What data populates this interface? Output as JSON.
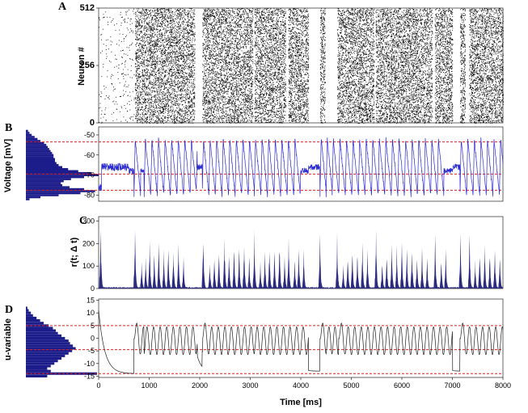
{
  "chart_data": [
    {
      "panel": "A",
      "type": "scatter",
      "ylabel": "Neuron #",
      "yticks": [
        0,
        256,
        512
      ],
      "ylim": [
        0,
        512
      ],
      "xlim": [
        0,
        8000
      ],
      "grid": false,
      "bursts": [
        {
          "start": 0,
          "end": 700,
          "density": "low"
        },
        {
          "start": 720,
          "end": 1200,
          "density": "high"
        },
        {
          "start": 1200,
          "end": 1900,
          "density": "high"
        },
        {
          "start": 2050,
          "end": 2400,
          "density": "high"
        },
        {
          "start": 2400,
          "end": 3050,
          "density": "high"
        },
        {
          "start": 3080,
          "end": 3700,
          "density": "high"
        },
        {
          "start": 3750,
          "end": 4150,
          "density": "high"
        },
        {
          "start": 4380,
          "end": 4480,
          "density": "high"
        },
        {
          "start": 4720,
          "end": 5450,
          "density": "high"
        },
        {
          "start": 5480,
          "end": 6600,
          "density": "high"
        },
        {
          "start": 6650,
          "end": 7000,
          "density": "high"
        },
        {
          "start": 7150,
          "end": 7250,
          "density": "high"
        },
        {
          "start": 7330,
          "end": 8000,
          "density": "high"
        }
      ]
    },
    {
      "panel": "B",
      "type": "line",
      "ylabel": "Voltage [mV]",
      "yticks": [
        -50,
        -60,
        -70,
        -80
      ],
      "ylim": [
        -83,
        -46
      ],
      "xlim": [
        0,
        8000
      ],
      "series_color": "#2a2ad0",
      "reference_lines": [
        -53.5,
        -69.5,
        -77.5
      ],
      "reference_color": "#e02020",
      "spike_times": [
        700,
        900,
        1030,
        1160,
        1290,
        1420,
        1550,
        1680,
        1810,
        1930,
        2050,
        2180,
        2310,
        2440,
        2570,
        2700,
        2830,
        2960,
        3080,
        3210,
        3340,
        3470,
        3600,
        3730,
        3860,
        4380,
        4500,
        4620,
        4750,
        4880,
        5010,
        5140,
        5270,
        5400,
        5530,
        5660,
        5790,
        5920,
        6050,
        6180,
        6310,
        6440,
        6570,
        6700,
        7150,
        7280,
        7410,
        7540,
        7670,
        7800,
        7930
      ],
      "histogram_fill": "#1c1c8a",
      "histogram_bins_mv": [
        -82,
        -81,
        -80,
        -79,
        -78,
        -77,
        -76,
        -75,
        -74,
        -73,
        -72,
        -71,
        -70,
        -69,
        -68,
        -67,
        -66,
        -65,
        -64,
        -63,
        -62,
        -61,
        -60,
        -59,
        -58,
        -57,
        -56,
        -55,
        -54,
        -53,
        -52,
        -51,
        -50,
        -49,
        -48
      ],
      "histogram_counts": [
        0.05,
        0.2,
        0.45,
        0.75,
        0.95,
        0.8,
        0.6,
        0.5,
        0.48,
        0.52,
        0.62,
        0.8,
        1.0,
        0.9,
        0.72,
        0.58,
        0.5,
        0.45,
        0.42,
        0.4,
        0.4,
        0.38,
        0.38,
        0.36,
        0.34,
        0.32,
        0.3,
        0.28,
        0.25,
        0.2,
        0.16,
        0.12,
        0.08,
        0.05,
        0.03
      ]
    },
    {
      "panel": "C",
      "type": "area",
      "ylabel": "r(t; Δ t)",
      "yticks": [
        0,
        100,
        200,
        300
      ],
      "ylim": [
        0,
        320
      ],
      "xlim": [
        0,
        8000
      ],
      "fill": "#2b2b80",
      "peaks": [
        {
          "t": 40,
          "v": 310
        },
        {
          "t": 720,
          "v": 300
        },
        {
          "t": 850,
          "v": 120
        },
        {
          "t": 930,
          "v": 160
        },
        {
          "t": 1010,
          "v": 230
        },
        {
          "t": 1100,
          "v": 180
        },
        {
          "t": 1190,
          "v": 240
        },
        {
          "t": 1290,
          "v": 200
        },
        {
          "t": 1380,
          "v": 210
        },
        {
          "t": 1480,
          "v": 190
        },
        {
          "t": 1580,
          "v": 210
        },
        {
          "t": 1680,
          "v": 150
        },
        {
          "t": 2070,
          "v": 260
        },
        {
          "t": 2200,
          "v": 130
        },
        {
          "t": 2290,
          "v": 170
        },
        {
          "t": 2380,
          "v": 200
        },
        {
          "t": 2490,
          "v": 250
        },
        {
          "t": 2580,
          "v": 190
        },
        {
          "t": 2680,
          "v": 220
        },
        {
          "t": 2780,
          "v": 210
        },
        {
          "t": 2880,
          "v": 240
        },
        {
          "t": 2980,
          "v": 160
        },
        {
          "t": 3080,
          "v": 270
        },
        {
          "t": 3200,
          "v": 130
        },
        {
          "t": 3290,
          "v": 180
        },
        {
          "t": 3380,
          "v": 220
        },
        {
          "t": 3480,
          "v": 200
        },
        {
          "t": 3580,
          "v": 230
        },
        {
          "t": 3680,
          "v": 170
        },
        {
          "t": 3760,
          "v": 250
        },
        {
          "t": 3880,
          "v": 160
        },
        {
          "t": 3960,
          "v": 200
        },
        {
          "t": 4060,
          "v": 180
        },
        {
          "t": 4380,
          "v": 260
        },
        {
          "t": 4720,
          "v": 260
        },
        {
          "t": 4840,
          "v": 120
        },
        {
          "t": 4930,
          "v": 170
        },
        {
          "t": 5020,
          "v": 210
        },
        {
          "t": 5120,
          "v": 190
        },
        {
          "t": 5220,
          "v": 230
        },
        {
          "t": 5320,
          "v": 180
        },
        {
          "t": 5490,
          "v": 270
        },
        {
          "t": 5610,
          "v": 140
        },
        {
          "t": 5700,
          "v": 180
        },
        {
          "t": 5800,
          "v": 220
        },
        {
          "t": 5900,
          "v": 200
        },
        {
          "t": 6000,
          "v": 240
        },
        {
          "t": 6100,
          "v": 190
        },
        {
          "t": 6200,
          "v": 210
        },
        {
          "t": 6300,
          "v": 180
        },
        {
          "t": 6400,
          "v": 200
        },
        {
          "t": 6500,
          "v": 150
        },
        {
          "t": 6660,
          "v": 250
        },
        {
          "t": 6780,
          "v": 150
        },
        {
          "t": 6870,
          "v": 180
        },
        {
          "t": 7160,
          "v": 280
        },
        {
          "t": 7340,
          "v": 260
        },
        {
          "t": 7450,
          "v": 140
        },
        {
          "t": 7540,
          "v": 190
        },
        {
          "t": 7640,
          "v": 210
        },
        {
          "t": 7740,
          "v": 180
        },
        {
          "t": 7840,
          "v": 200
        },
        {
          "t": 7940,
          "v": 160
        }
      ]
    },
    {
      "panel": "D",
      "type": "line",
      "ylabel": "u-variable",
      "xlabel": "Time [ms]",
      "yticks": [
        15,
        10,
        5,
        0,
        -5,
        -10,
        -15
      ],
      "ylim": [
        -15.5,
        15.5
      ],
      "xlim": [
        0,
        8000
      ],
      "xticks": [
        0,
        1000,
        2000,
        3000,
        4000,
        5000,
        6000,
        7000,
        8000
      ],
      "series_color": "#222222",
      "reference_lines": [
        5,
        -4.5,
        -14
      ],
      "reference_color": "#e02020",
      "histogram_fill": "#1c1c8a",
      "histogram_bins": [
        -15,
        -14,
        -13,
        -12,
        -11,
        -10,
        -9,
        -8,
        -7,
        -6,
        -5,
        -4,
        -3,
        -2,
        -1,
        0,
        1,
        2,
        3,
        4,
        5,
        6,
        7,
        8,
        9,
        10,
        11,
        12
      ],
      "histogram_counts": [
        0.3,
        1.0,
        0.35,
        0.3,
        0.35,
        0.4,
        0.45,
        0.5,
        0.55,
        0.6,
        0.65,
        0.7,
        0.66,
        0.62,
        0.6,
        0.55,
        0.5,
        0.45,
        0.42,
        0.38,
        0.32,
        0.25,
        0.2,
        0.15,
        0.1,
        0.07,
        0.04,
        0.02
      ]
    }
  ],
  "panel_labels": [
    "A",
    "B",
    "C",
    "D"
  ]
}
